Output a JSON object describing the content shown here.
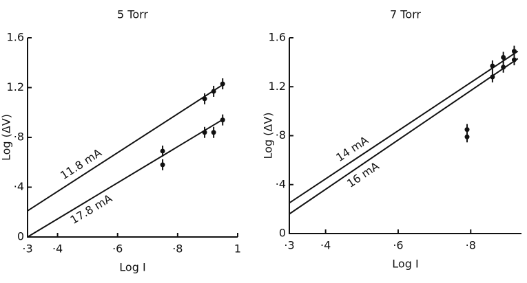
{
  "chart_data": [
    {
      "type": "scatter-fit",
      "title": "5 Torr",
      "x_label": "Log I",
      "y_label": "Log (ΔV)",
      "xlim": [
        0.3,
        1.0
      ],
      "ylim": [
        0,
        1.6
      ],
      "xticks": [
        {
          "value": 0.3,
          "label": "·3"
        },
        {
          "value": 0.4,
          "label": "·4"
        },
        {
          "value": 0.6,
          "label": "·6"
        },
        {
          "value": 0.8,
          "label": "·8"
        },
        1
      ],
      "yticks": [
        0,
        {
          "value": 0.4,
          "label": "·4"
        },
        {
          "value": 0.8,
          "label": "·8"
        },
        1.2,
        1.6
      ],
      "series": [
        {
          "name": "11.8 mA",
          "line_x": [
            0.3,
            0.955
          ],
          "line_values": [
            0.21,
            1.23
          ],
          "x": [
            0.75,
            0.89,
            0.92,
            0.95
          ],
          "values": [
            0.69,
            1.11,
            1.17,
            1.23
          ]
        },
        {
          "name": "17.8 mA",
          "line_x": [
            0.3,
            0.955
          ],
          "line_values": [
            0.0,
            0.95
          ],
          "x": [
            0.75,
            0.89,
            0.92,
            0.95
          ],
          "values": [
            0.58,
            0.84,
            0.84,
            0.94
          ]
        }
      ]
    },
    {
      "type": "scatter-fit",
      "title": "7 Torr",
      "x_label": "Log I",
      "y_label": "Log (ΔV)",
      "xlim": [
        0.3,
        0.94
      ],
      "ylim": [
        0,
        1.6
      ],
      "xticks": [
        {
          "value": 0.3,
          "label": "·3"
        },
        {
          "value": 0.4,
          "label": "·4"
        },
        {
          "value": 0.6,
          "label": "·6"
        },
        {
          "value": 0.8,
          "label": "·8"
        }
      ],
      "yticks": [
        0,
        {
          "value": 0.4,
          "label": "·4"
        },
        {
          "value": 0.8,
          "label": "·8"
        },
        1.2,
        1.6
      ],
      "series": [
        {
          "name": "14 mA",
          "line_x": [
            0.3,
            0.93
          ],
          "line_values": [
            0.25,
            1.49
          ],
          "x": [
            0.79,
            0.86,
            0.89,
            0.92
          ],
          "values": [
            0.85,
            1.37,
            1.44,
            1.49
          ]
        },
        {
          "name": "16 mA",
          "line_x": [
            0.3,
            0.93
          ],
          "line_values": [
            0.16,
            1.43
          ],
          "x": [
            0.79,
            0.86,
            0.89,
            0.92
          ],
          "values": [
            0.79,
            1.28,
            1.36,
            1.42
          ]
        }
      ]
    }
  ]
}
